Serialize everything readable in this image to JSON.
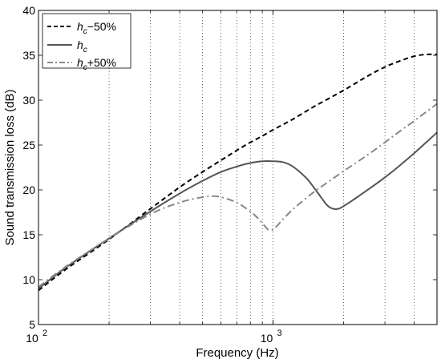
{
  "chart_data": {
    "type": "line",
    "xlabel": "Frequency (Hz)",
    "ylabel": "Sound transmission loss (dB)",
    "xscale": "log",
    "xlim": [
      100,
      5000
    ],
    "ylim": [
      5,
      40
    ],
    "grid": "x-only, dotted",
    "x_ticks": [
      {
        "value": 100,
        "base": "10",
        "exp": "2"
      },
      {
        "value": 1000,
        "base": "10",
        "exp": "3"
      }
    ],
    "y_ticks": [
      "5",
      "10",
      "15",
      "20",
      "25",
      "30",
      "35",
      "40"
    ],
    "legend_position": "top-left",
    "series": [
      {
        "name_base": "h",
        "name_sub": "c",
        "name_suffix": "−50%",
        "color": "#000000",
        "style": "dashed",
        "x": [
          100,
          130,
          200,
          300,
          400,
          500,
          600,
          700,
          800,
          900,
          1000,
          1200,
          1500,
          2000,
          2500,
          3000,
          3500,
          4000,
          4500,
          5000
        ],
        "y": [
          8.8,
          11.1,
          14.5,
          17.9,
          20.3,
          22.0,
          23.3,
          24.4,
          25.3,
          26.0,
          26.7,
          27.8,
          29.3,
          31.1,
          32.6,
          33.7,
          34.4,
          34.9,
          35.1,
          35.1
        ]
      },
      {
        "name_base": "h",
        "name_sub": "c",
        "name_suffix": "",
        "color": "#555555",
        "style": "solid",
        "x": [
          100,
          130,
          200,
          300,
          400,
          500,
          600,
          700,
          800,
          900,
          1000,
          1100,
          1200,
          1300,
          1400,
          1500,
          1600,
          1700,
          1800,
          1900,
          2000,
          2200,
          2500,
          3000,
          3500,
          4000,
          4500,
          5000
        ],
        "y": [
          9.0,
          11.3,
          14.6,
          17.6,
          19.6,
          21.0,
          22.0,
          22.6,
          23.0,
          23.2,
          23.2,
          23.1,
          22.7,
          22.0,
          21.2,
          20.2,
          19.2,
          18.3,
          17.9,
          17.9,
          18.2,
          18.9,
          19.9,
          21.4,
          22.8,
          24.1,
          25.3,
          26.4
        ]
      },
      {
        "name_base": "h",
        "name_sub": "c",
        "name_suffix": "+50%",
        "color": "#888888",
        "style": "dashdot",
        "x": [
          100,
          130,
          200,
          300,
          400,
          500,
          550,
          600,
          700,
          800,
          850,
          900,
          950,
          980,
          1000,
          1050,
          1100,
          1200,
          1300,
          1500,
          1700,
          2000,
          2500,
          3000,
          3500,
          4000,
          4500,
          5000
        ],
        "y": [
          9.2,
          11.4,
          14.6,
          17.3,
          18.6,
          19.2,
          19.3,
          19.2,
          18.6,
          17.6,
          17.0,
          16.3,
          15.6,
          15.5,
          15.6,
          16.1,
          16.7,
          17.7,
          18.5,
          19.8,
          20.8,
          22.1,
          23.8,
          25.3,
          26.6,
          27.7,
          28.7,
          29.6
        ]
      }
    ]
  }
}
